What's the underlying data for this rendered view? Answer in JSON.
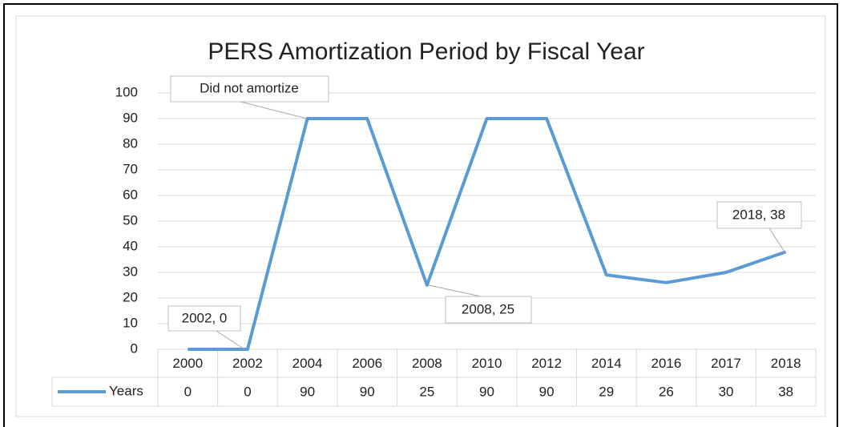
{
  "chart_data": {
    "type": "line",
    "title": "PERS Amortization Period by Fiscal Year",
    "categories": [
      "2000",
      "2002",
      "2004",
      "2006",
      "2008",
      "2010",
      "2012",
      "2014",
      "2016",
      "2017",
      "2018"
    ],
    "series": [
      {
        "name": "Years",
        "color": "#5b9bd5",
        "values": [
          0,
          0,
          90,
          90,
          25,
          90,
          90,
          29,
          26,
          30,
          38
        ]
      }
    ],
    "ylim": [
      0,
      100
    ],
    "yticks": [
      0,
      10,
      20,
      30,
      40,
      50,
      60,
      70,
      80,
      90,
      100
    ],
    "grid": true,
    "annotations": [
      "Did not amortize",
      "2002, 0",
      "2008, 25",
      "2018, 38"
    ]
  }
}
